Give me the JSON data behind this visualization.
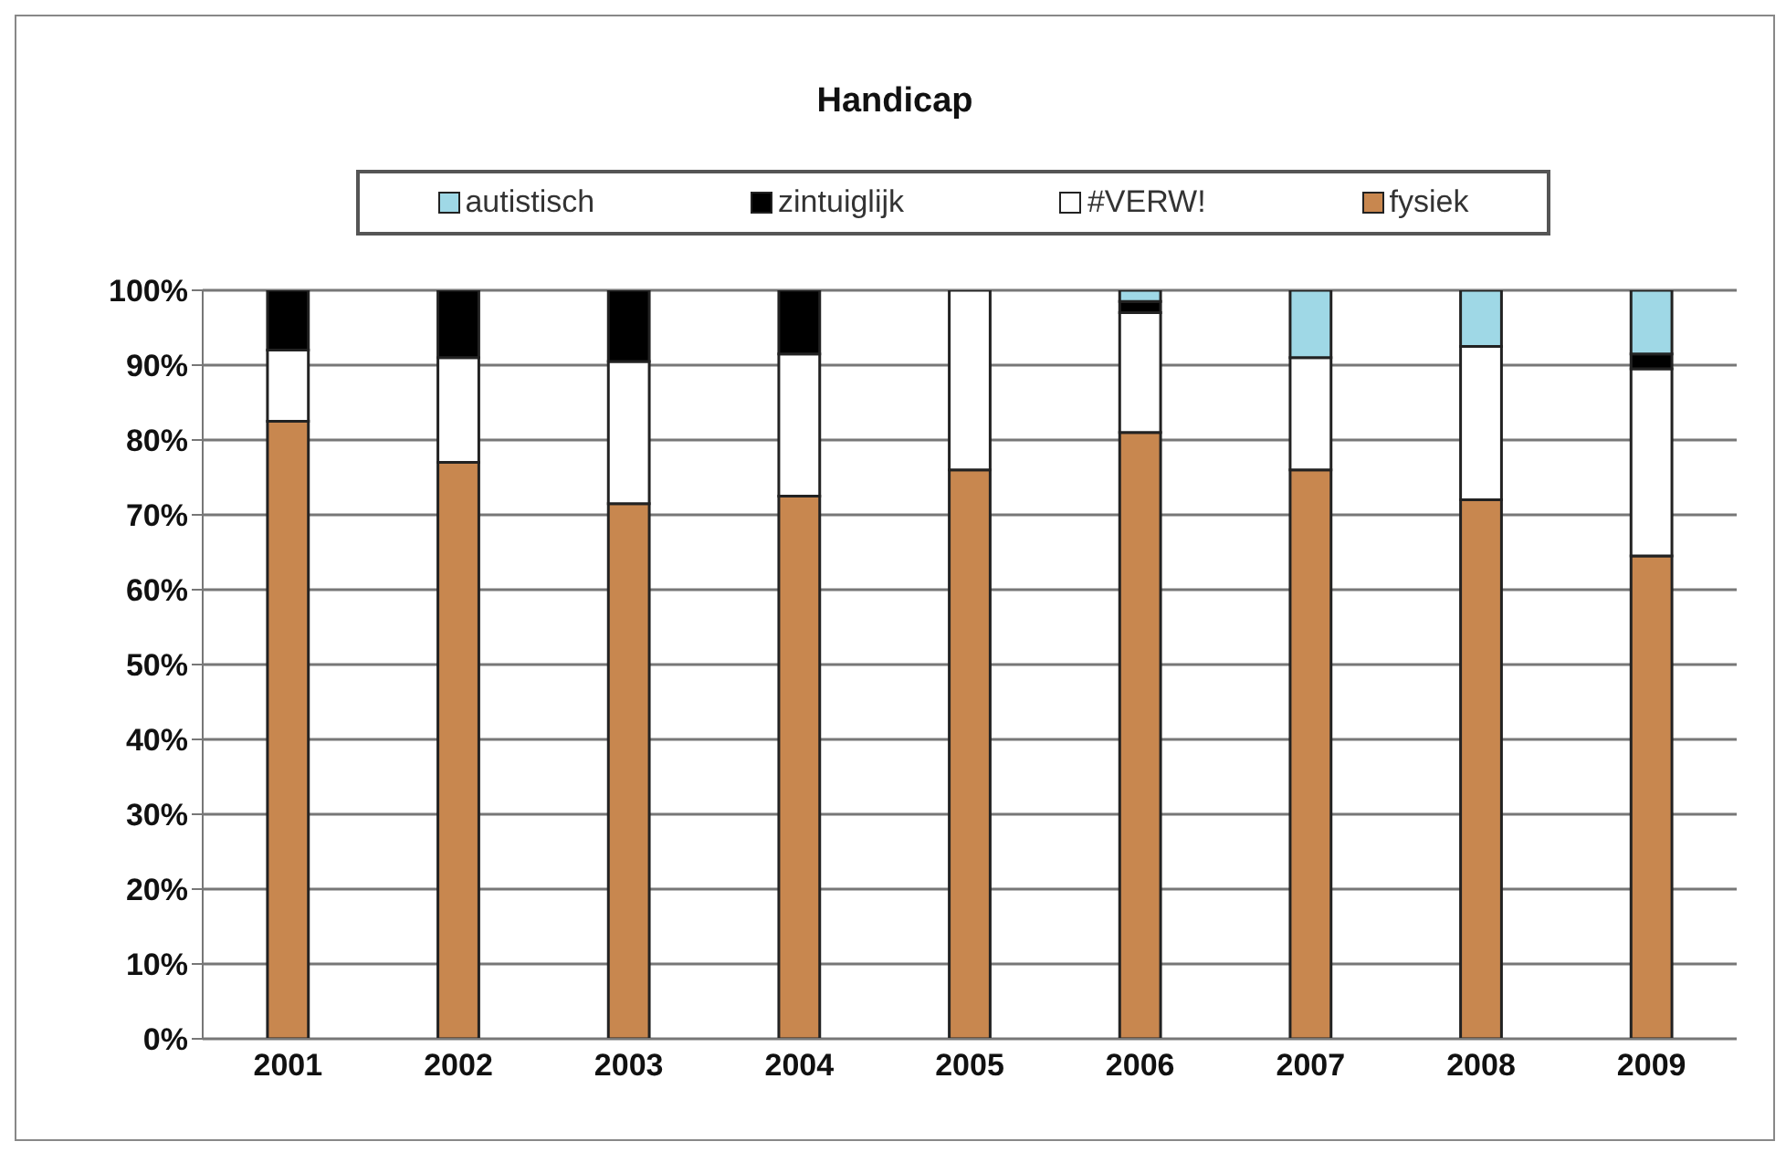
{
  "chart_data": {
    "type": "bar",
    "title": "Handicap",
    "stacked": true,
    "legend": "top",
    "grid": "y",
    "categories": [
      "2001",
      "2002",
      "2003",
      "2004",
      "2005",
      "2006",
      "2007",
      "2008",
      "2009"
    ],
    "series": [
      {
        "name": "fysiek",
        "color": "#c8874f",
        "values": [
          82.5,
          77,
          71.5,
          72.5,
          76,
          81,
          76,
          72,
          64.5
        ]
      },
      {
        "name": "#VERW!",
        "color": "#ffffff",
        "values": [
          9.5,
          14,
          19,
          19,
          24,
          16,
          15,
          20.5,
          25
        ]
      },
      {
        "name": "zintuiglijk",
        "color": "#000000",
        "values": [
          8,
          9,
          9.5,
          8.5,
          0,
          1.5,
          0,
          0,
          2
        ]
      },
      {
        "name": "autistisch",
        "color": "#9fd8e6",
        "values": [
          0,
          0,
          0,
          0,
          0,
          1.5,
          9,
          7.5,
          8.5
        ]
      }
    ],
    "ylim": [
      0,
      100
    ],
    "yticks": [
      {
        "value": 0,
        "label": "0%"
      },
      {
        "value": 10,
        "label": "10%"
      },
      {
        "value": 20,
        "label": "20%"
      },
      {
        "value": 30,
        "label": "30%"
      },
      {
        "value": 40,
        "label": "40%"
      },
      {
        "value": 50,
        "label": "50%"
      },
      {
        "value": 60,
        "label": "60%"
      },
      {
        "value": 70,
        "label": "70%"
      },
      {
        "value": 80,
        "label": "80%"
      },
      {
        "value": 90,
        "label": "90%"
      },
      {
        "value": 100,
        "label": "100%"
      }
    ]
  }
}
